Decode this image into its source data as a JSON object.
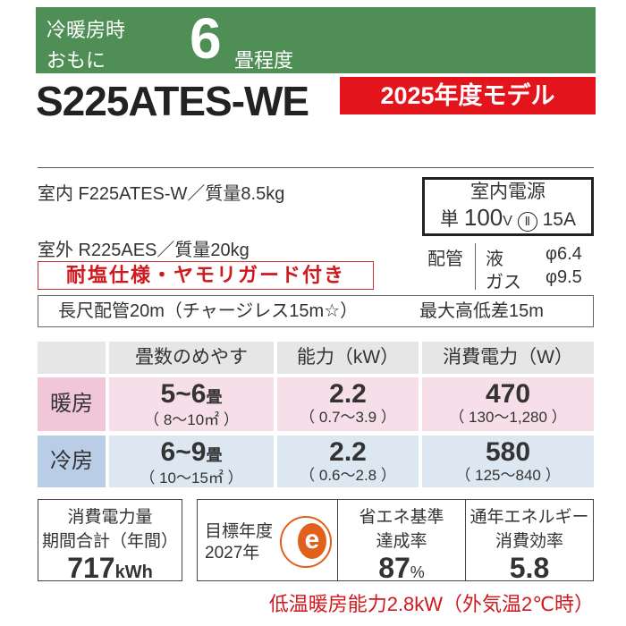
{
  "header": {
    "line1": "冷暖房時",
    "line2": "おもに",
    "tatami": "6",
    "suffix": "畳程度"
  },
  "model": "S225ATES-WE",
  "badge": "2025年度モデル",
  "indoor": "室内  F225ATES-W／質量8.5kg",
  "outdoor": "室外  R225AES／質量20kg",
  "power": {
    "title": "室内電源",
    "phase": "単",
    "voltage": "100",
    "v_unit": "V",
    "plug": "Ⅱ",
    "amp": "15A"
  },
  "piping": {
    "label": "配管",
    "liquid": "液",
    "liquid_val": "φ6.4",
    "gas": "ガス",
    "gas_val": "φ9.5"
  },
  "tag": "耐塩仕様・ヤモリガード付き",
  "pipe_info": {
    "length": "長尺配管20m（チャージレス15m☆）",
    "height": "最大高低差15m"
  },
  "table": {
    "headers": [
      "畳数のめやす",
      "能力（kW）",
      "消費電力（W）"
    ],
    "rows": [
      {
        "label": "暖房",
        "tatami": "5~6",
        "unit": "畳",
        "tatami_range": "（ 8～10㎡ ）",
        "capacity": "2.2",
        "capacity_range": "（ 0.7～3.9 ）",
        "power": "470",
        "power_range": "（ 130～1,280 ）"
      },
      {
        "label": "冷房",
        "tatami": "6~9",
        "unit": "畳",
        "tatami_range": "（ 10～15㎡ ）",
        "capacity": "2.2",
        "capacity_range": "（ 0.6～2.8 ）",
        "power": "580",
        "power_range": "（ 125～840 ）"
      }
    ]
  },
  "annual": {
    "l1": "消費電力量",
    "l2": "期間合計（年間）",
    "value": "717",
    "unit": "kWh"
  },
  "target": {
    "l1": "目標年度",
    "l2": "2027年",
    "logo": "e"
  },
  "achievement": {
    "l1": "省エネ基準",
    "l2": "達成率",
    "value": "87",
    "unit": "%"
  },
  "apf": {
    "l1": "通年エネルギー",
    "l2": "消費効率",
    "value": "5.8"
  },
  "low_temp": "低温暖房能力2.8kW（外気温2℃時）",
  "colors": {
    "green": "#4f8f55",
    "red": "#e3141c",
    "heat": "#f6dfe8",
    "cool": "#dde7f1",
    "logo": "#e0601c"
  }
}
